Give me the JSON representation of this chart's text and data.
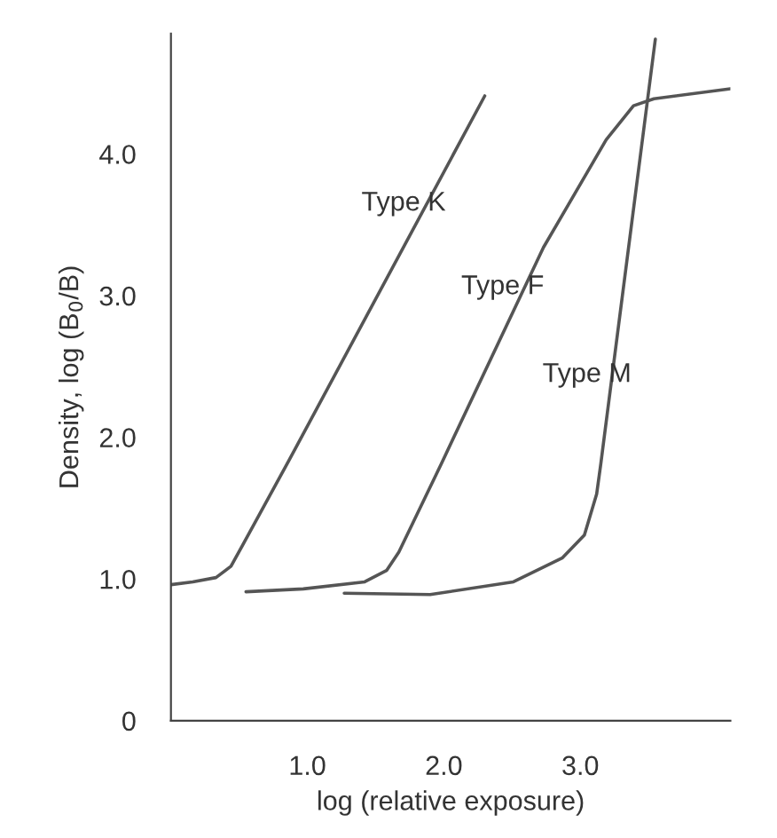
{
  "chart_data": {
    "type": "line",
    "xlabel": "log (relative exposure)",
    "ylabel": "Density, log (B$_{0}$/B)",
    "xlim": [
      0,
      4.1
    ],
    "ylim": [
      0,
      4.85
    ],
    "xticks": [
      {
        "value": 1,
        "label": "1.0"
      },
      {
        "value": 2,
        "label": "2.0"
      },
      {
        "value": 3,
        "label": "3.0"
      }
    ],
    "yticks": [
      0,
      {
        "value": 1,
        "label": "1.0"
      },
      {
        "value": 2,
        "label": "2.0"
      },
      {
        "value": 3,
        "label": "3.0"
      },
      {
        "value": 4,
        "label": "4.0"
      }
    ],
    "grid": false,
    "marker": "none",
    "line_style": "solid",
    "series": [
      {
        "color": "#555555",
        "x": [
          0,
          0.16,
          0.33,
          0.44,
          0.52,
          0.85,
          2.3
        ],
        "values": [
          0.96,
          0.98,
          1.01,
          1.09,
          1.23,
          1.81,
          4.41
        ]
      },
      {
        "color": "#555555",
        "x": [
          0.55,
          0.97,
          1.42,
          1.58,
          1.67,
          1.98,
          2.73,
          3.19,
          3.39,
          3.54,
          4.1
        ],
        "values": [
          0.91,
          0.93,
          0.98,
          1.06,
          1.19,
          1.81,
          3.34,
          4.1,
          4.34,
          4.39,
          4.46
        ]
      },
      {
        "color": "#555555",
        "x": [
          1.27,
          1.9,
          2.51,
          2.87,
          3.03,
          3.12,
          3.15,
          3.55
        ],
        "values": [
          0.9,
          0.89,
          0.98,
          1.15,
          1.31,
          1.6,
          1.81,
          4.81
        ]
      }
    ],
    "annotations": [
      {
        "text": "Type K",
        "x": 1.87,
        "y": 3.65
      },
      {
        "text": "Type F",
        "x": 2.59,
        "y": 3.06
      },
      {
        "text": "Type M",
        "x": 3.23,
        "y": 2.44
      }
    ]
  }
}
